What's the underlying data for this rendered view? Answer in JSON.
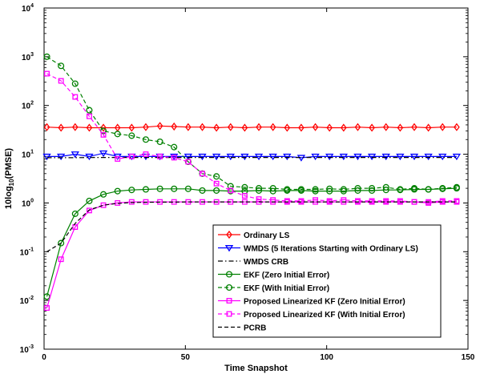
{
  "chart_data": {
    "type": "line",
    "xlabel": "Time Snapshot",
    "ylabel": "10log",
    "ylabel_sub": "10",
    "ylabel_suffix": "(PMSE)",
    "xlim": [
      0,
      150
    ],
    "ylim_log10": [
      -3,
      4
    ],
    "yscale": "log",
    "x_ticks": [
      0,
      50,
      100,
      150
    ],
    "y_ticks_exp": [
      -3,
      -2,
      -1,
      0,
      1,
      2,
      3,
      4
    ],
    "y_tick_base": "10",
    "legend_placement": "lower-right",
    "series": [
      {
        "name": "Ordinary LS",
        "color": "#ff0000",
        "style": "solid",
        "marker": "diamond",
        "x": [
          1,
          6,
          11,
          16,
          21,
          26,
          31,
          36,
          41,
          46,
          51,
          56,
          61,
          66,
          71,
          76,
          81,
          86,
          91,
          96,
          101,
          106,
          111,
          116,
          121,
          126,
          131,
          136,
          141,
          146
        ],
        "y": [
          36,
          35,
          36,
          35,
          35,
          35,
          35,
          36,
          38,
          37,
          36,
          36,
          35,
          36,
          35,
          36,
          36,
          35,
          35,
          36,
          35,
          35,
          36,
          35,
          36,
          35,
          36,
          35,
          36,
          36
        ]
      },
      {
        "name": "WMDS (5 Iterations Starting with Ordinary LS)",
        "color": "#0000ff",
        "style": "solid",
        "marker": "triangle-down",
        "x": [
          1,
          6,
          11,
          16,
          21,
          26,
          31,
          36,
          41,
          46,
          51,
          56,
          61,
          66,
          71,
          76,
          81,
          86,
          91,
          96,
          101,
          106,
          111,
          116,
          121,
          126,
          131,
          136,
          141,
          146
        ],
        "y": [
          9,
          9,
          10,
          9,
          10.5,
          9,
          9,
          9,
          9,
          9,
          9,
          9,
          9,
          9,
          9,
          9,
          9,
          9,
          8.5,
          9,
          9,
          9,
          9,
          9,
          9,
          9,
          9,
          9,
          9,
          9
        ]
      },
      {
        "name": "WMDS CRB",
        "color": "#000000",
        "style": "dashdot",
        "marker": "none",
        "x": [
          1,
          10,
          20,
          40,
          60,
          80,
          100,
          120,
          146
        ],
        "y": [
          8.5,
          8.5,
          8.6,
          8.6,
          8.6,
          8.6,
          8.6,
          8.6,
          8.6
        ]
      },
      {
        "name": "EKF (Zero Initial Error)",
        "color": "#008000",
        "style": "solid",
        "marker": "circle",
        "x": [
          1,
          6,
          11,
          16,
          21,
          26,
          31,
          36,
          41,
          46,
          51,
          56,
          61,
          66,
          71,
          76,
          81,
          86,
          91,
          96,
          101,
          106,
          111,
          116,
          121,
          126,
          131,
          136,
          141,
          146
        ],
        "y": [
          0.012,
          0.15,
          0.6,
          1.1,
          1.5,
          1.75,
          1.85,
          1.9,
          1.95,
          1.95,
          1.95,
          1.8,
          1.8,
          1.75,
          1.75,
          1.8,
          1.75,
          1.8,
          1.8,
          1.75,
          1.75,
          1.75,
          1.8,
          1.8,
          1.85,
          1.85,
          1.9,
          1.9,
          1.95,
          2.0
        ]
      },
      {
        "name": "EKF (With Initial Error)",
        "color": "#008000",
        "style": "dashed",
        "marker": "circle",
        "x": [
          1,
          6,
          11,
          16,
          21,
          26,
          31,
          36,
          41,
          46,
          51,
          56,
          61,
          66,
          71,
          76,
          81,
          86,
          91,
          96,
          101,
          106,
          111,
          116,
          121,
          126,
          131,
          136,
          141,
          146
        ],
        "y": [
          1000,
          650,
          280,
          80,
          30,
          26,
          24,
          20,
          18,
          14,
          7,
          4,
          3.5,
          2.2,
          2.1,
          2.0,
          2.0,
          1.9,
          1.9,
          1.9,
          1.95,
          1.9,
          2.0,
          2.0,
          2.1,
          1.9,
          2.0,
          1.9,
          2.0,
          2.1
        ]
      },
      {
        "name": "Proposed Linearized KF (Zero Initial Error)",
        "color": "#ff00ff",
        "style": "solid",
        "marker": "square",
        "x": [
          1,
          6,
          11,
          16,
          21,
          26,
          31,
          36,
          41,
          46,
          51,
          56,
          61,
          66,
          71,
          76,
          81,
          86,
          91,
          96,
          101,
          106,
          111,
          116,
          121,
          126,
          131,
          136,
          141,
          146
        ],
        "y": [
          0.007,
          0.07,
          0.32,
          0.7,
          0.9,
          1.0,
          1.05,
          1.05,
          1.05,
          1.05,
          1.05,
          1.05,
          1.05,
          1.05,
          1.05,
          1.05,
          1.05,
          1.05,
          1.05,
          1.05,
          1.05,
          1.05,
          1.05,
          1.05,
          1.05,
          1.05,
          1.05,
          1.0,
          1.05,
          1.05
        ]
      },
      {
        "name": "Proposed Linearized KF (With Initial Error)",
        "color": "#ff00ff",
        "style": "dashed",
        "marker": "square",
        "x": [
          1,
          6,
          11,
          16,
          21,
          26,
          31,
          36,
          41,
          46,
          51,
          56,
          61,
          66,
          71,
          76,
          81,
          86,
          91,
          96,
          101,
          106,
          111,
          116,
          121,
          126,
          131,
          136,
          141,
          146
        ],
        "y": [
          450,
          320,
          150,
          60,
          25,
          8,
          9,
          10,
          9,
          8.5,
          7,
          4,
          2.5,
          1.8,
          1.4,
          1.2,
          1.15,
          1.1,
          1.1,
          1.15,
          1.1,
          1.15,
          1.1,
          1.1,
          1.1,
          1.1,
          1.05,
          1.05,
          1.1,
          1.1
        ]
      },
      {
        "name": "PCRB",
        "color": "#000000",
        "style": "dashed",
        "marker": "none",
        "x": [
          1,
          6,
          11,
          16,
          21,
          26,
          31,
          36,
          41,
          46,
          51,
          56,
          61,
          66,
          71,
          76,
          81,
          86,
          91,
          96,
          101,
          106,
          111,
          116,
          121,
          126,
          131,
          136,
          141,
          146
        ],
        "y": [
          0.1,
          0.15,
          0.38,
          0.72,
          0.9,
          0.98,
          1.02,
          1.03,
          1.04,
          1.04,
          1.05,
          1.05,
          1.05,
          1.05,
          1.05,
          1.05,
          1.05,
          1.05,
          1.05,
          1.05,
          1.05,
          1.05,
          1.05,
          1.05,
          1.05,
          1.05,
          1.05,
          1.05,
          1.05,
          1.05
        ]
      }
    ]
  }
}
